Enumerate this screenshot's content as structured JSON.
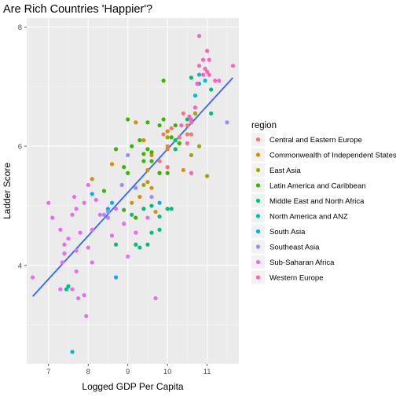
{
  "chart_data": {
    "type": "scatter",
    "title": "Are Rich Countries 'Happier'?",
    "xlabel": "Logged GDP Per Capita",
    "ylabel": "Ladder Score",
    "xlim": [
      6.45,
      11.8
    ],
    "ylim": [
      2.35,
      8.15
    ],
    "x_ticks": [
      7,
      8,
      9,
      10,
      11
    ],
    "y_ticks": [
      4,
      6,
      8
    ],
    "grid": true,
    "legend_title": "region",
    "legend_position": "right",
    "trend_line": {
      "x": [
        6.6,
        11.65
      ],
      "y": [
        3.48,
        7.15
      ],
      "color": "#3366FF"
    },
    "series": [
      {
        "name": "Central and Eastern Europe",
        "color": "#F8766D",
        "points": [
          [
            10.0,
            6.0
          ],
          [
            10.2,
            5.95
          ],
          [
            10.3,
            6.05
          ],
          [
            10.5,
            6.2
          ],
          [
            10.6,
            6.2
          ],
          [
            10.1,
            6.3
          ],
          [
            10.4,
            6.55
          ],
          [
            10.7,
            6.55
          ],
          [
            10.2,
            6.1
          ],
          [
            9.9,
            6.2
          ],
          [
            9.8,
            5.75
          ],
          [
            10.3,
            6.15
          ],
          [
            10.5,
            6.35
          ],
          [
            10.0,
            5.65
          ]
        ]
      },
      {
        "name": "Commonwealth of Independent States",
        "color": "#D89000",
        "points": [
          [
            9.2,
            6.4
          ],
          [
            9.4,
            6.1
          ],
          [
            9.6,
            5.85
          ],
          [
            9.5,
            5.6
          ],
          [
            9.5,
            5.4
          ],
          [
            9.3,
            5.15
          ],
          [
            9.4,
            4.95
          ],
          [
            8.6,
            5.7
          ],
          [
            8.1,
            5.45
          ],
          [
            9.1,
            5.05
          ],
          [
            9.6,
            5.3
          ],
          [
            9.7,
            4.9
          ],
          [
            10.4,
            5.6
          ],
          [
            10.0,
            6.25
          ],
          [
            10.0,
            5.95
          ],
          [
            11.0,
            5.5
          ]
        ]
      },
      {
        "name": "East Asia",
        "color": "#A3A500",
        "points": [
          [
            10.7,
            6.55
          ],
          [
            10.8,
            6.0
          ],
          [
            10.0,
            6.15
          ],
          [
            9.4,
            5.35
          ],
          [
            10.6,
            5.85
          ],
          [
            11.0,
            5.5
          ],
          [
            9.8,
            5.55
          ]
        ]
      },
      {
        "name": "Latin America and Caribbean",
        "color": "#39B600",
        "points": [
          [
            9.0,
            6.45
          ],
          [
            9.5,
            6.4
          ],
          [
            9.9,
            6.45
          ],
          [
            8.7,
            5.95
          ],
          [
            9.1,
            6.0
          ],
          [
            9.3,
            6.1
          ],
          [
            9.5,
            5.95
          ],
          [
            9.6,
            5.75
          ],
          [
            8.9,
            5.65
          ],
          [
            9.0,
            5.55
          ],
          [
            9.4,
            5.75
          ],
          [
            8.9,
            4.93
          ],
          [
            9.2,
            4.8
          ],
          [
            9.8,
            6.35
          ],
          [
            9.8,
            5.55
          ],
          [
            9.6,
            5.9
          ],
          [
            9.9,
            7.1
          ],
          [
            10.1,
            6.15
          ],
          [
            10.2,
            6.35
          ],
          [
            9.4,
            5.87
          ],
          [
            10.0,
            5.55
          ],
          [
            10.3,
            6.05
          ],
          [
            8.4,
            5.25
          ]
        ]
      },
      {
        "name": "Middle East and North Africa",
        "color": "#00BF7D",
        "points": [
          [
            10.6,
            7.15
          ],
          [
            11.1,
            6.55
          ],
          [
            10.2,
            6.1
          ],
          [
            9.8,
            4.82
          ],
          [
            9.5,
            4.35
          ],
          [
            9.3,
            4.3
          ],
          [
            9.1,
            4.85
          ],
          [
            9.6,
            5.0
          ],
          [
            8.7,
            4.35
          ],
          [
            9.4,
            4.95
          ],
          [
            10.1,
            4.95
          ],
          [
            7.5,
            3.65
          ],
          [
            7.45,
            3.6
          ],
          [
            9.2,
            4.35
          ],
          [
            9.6,
            4.55
          ],
          [
            9.8,
            4.6
          ],
          [
            10.2,
            5.95
          ],
          [
            10.0,
            4.95
          ],
          [
            11.1,
            6.95
          ],
          [
            10.5,
            6.45
          ]
        ]
      },
      {
        "name": "North America and ANZ",
        "color": "#00BFC4",
        "points": [
          [
            10.8,
            7.2
          ],
          [
            10.8,
            7.05
          ],
          [
            10.95,
            7.1
          ],
          [
            10.7,
            6.85
          ]
        ]
      },
      {
        "name": "South Asia",
        "color": "#00B0F6",
        "points": [
          [
            7.6,
            2.55
          ],
          [
            8.7,
            3.8
          ],
          [
            8.1,
            5.2
          ],
          [
            8.6,
            5.05
          ],
          [
            9.8,
            5.05
          ],
          [
            8.5,
            4.95
          ]
        ]
      },
      {
        "name": "Southeast Asia",
        "color": "#9590FF",
        "points": [
          [
            11.5,
            6.4
          ],
          [
            9.0,
            5.85
          ],
          [
            8.85,
            5.35
          ],
          [
            8.5,
            4.9
          ],
          [
            9.2,
            5.3
          ],
          [
            8.4,
            4.85
          ],
          [
            9.6,
            5.15
          ]
        ]
      },
      {
        "name": "Sub-Saharan Africa",
        "color": "#E76BF3",
        "points": [
          [
            6.6,
            3.8
          ],
          [
            7.0,
            5.05
          ],
          [
            7.1,
            4.8
          ],
          [
            7.3,
            4.6
          ],
          [
            7.4,
            4.35
          ],
          [
            7.4,
            4.2
          ],
          [
            7.35,
            4.05
          ],
          [
            7.5,
            4.45
          ],
          [
            7.6,
            4.85
          ],
          [
            7.65,
            5.15
          ],
          [
            7.7,
            4.95
          ],
          [
            7.8,
            4.55
          ],
          [
            7.9,
            5.05
          ],
          [
            7.7,
            3.9
          ],
          [
            7.75,
            3.45
          ],
          [
            7.9,
            3.5
          ],
          [
            7.95,
            3.15
          ],
          [
            8.0,
            4.3
          ],
          [
            8.1,
            4.6
          ],
          [
            8.2,
            5.1
          ],
          [
            8.0,
            5.35
          ],
          [
            8.1,
            4.05
          ],
          [
            8.3,
            4.85
          ],
          [
            8.5,
            4.8
          ],
          [
            8.6,
            4.5
          ],
          [
            8.9,
            4.7
          ],
          [
            9.0,
            4.15
          ],
          [
            9.2,
            4.55
          ],
          [
            9.7,
            3.45
          ],
          [
            7.3,
            3.6
          ],
          [
            7.7,
            4.25
          ],
          [
            7.6,
            3.6
          ],
          [
            8.7,
            4.95
          ],
          [
            9.5,
            4.8
          ]
        ]
      },
      {
        "name": "Western Europe",
        "color": "#FF62BC",
        "points": [
          [
            10.8,
            7.85
          ],
          [
            11.0,
            7.6
          ],
          [
            11.05,
            7.45
          ],
          [
            10.9,
            7.45
          ],
          [
            10.8,
            7.35
          ],
          [
            10.95,
            7.3
          ],
          [
            11.0,
            7.25
          ],
          [
            10.9,
            7.2
          ],
          [
            11.05,
            7.2
          ],
          [
            11.2,
            7.1
          ],
          [
            11.3,
            7.1
          ],
          [
            11.65,
            7.35
          ],
          [
            10.75,
            7.05
          ],
          [
            10.6,
            6.45
          ],
          [
            10.7,
            6.65
          ],
          [
            10.6,
            6.4
          ],
          [
            10.55,
            6.5
          ],
          [
            10.5,
            6.05
          ],
          [
            10.35,
            6.35
          ],
          [
            10.6,
            5.55
          ]
        ]
      }
    ]
  }
}
